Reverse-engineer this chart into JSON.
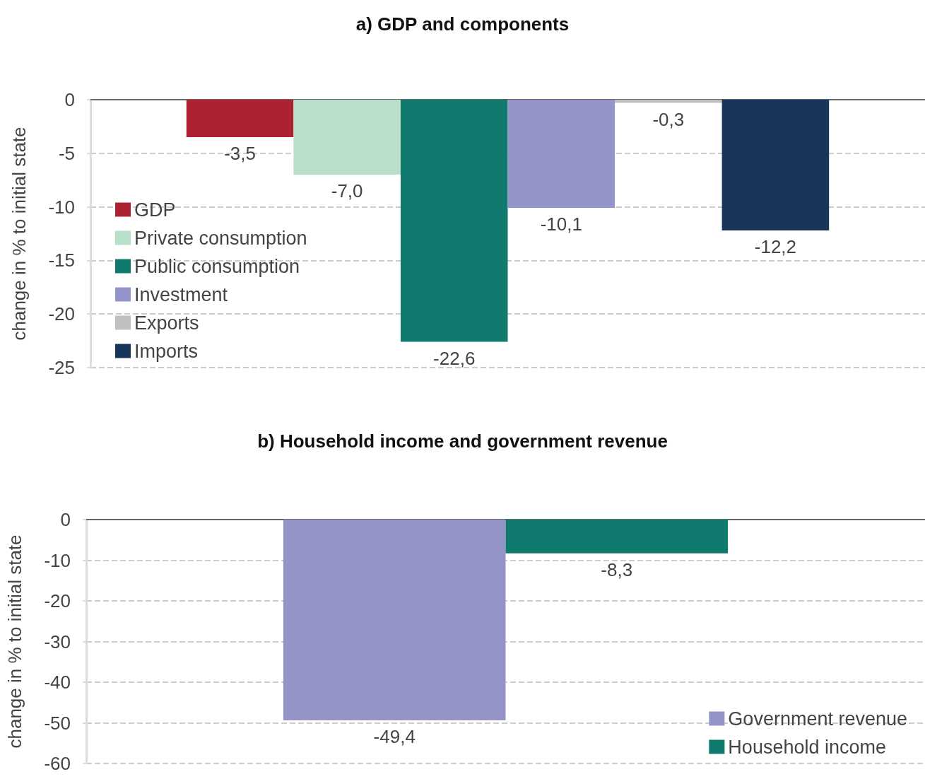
{
  "chart_data": [
    {
      "type": "bar",
      "title": "a) GDP and components",
      "ylabel": "change in % to initial state",
      "categories": [
        null
      ],
      "ylim": [
        -25,
        0
      ],
      "yticks": [
        0,
        -5,
        -10,
        -15,
        -20,
        -25
      ],
      "grid": "y",
      "legend": "bottom left",
      "tick_labels": "y",
      "series": [
        {
          "name": "GDP",
          "color": "#ae2132",
          "values": [
            -3.5
          ],
          "value_labels": [
            "-3,5"
          ]
        },
        {
          "name": "Private consumption",
          "color": "#b7dfca",
          "values": [
            -7.0
          ],
          "value_labels": [
            "-7,0"
          ]
        },
        {
          "name": "Public consumption",
          "color": "#117a6f",
          "values": [
            -22.6
          ],
          "value_labels": [
            "-22,6"
          ]
        },
        {
          "name": "Investment",
          "color": "#9494c8",
          "values": [
            -10.1
          ],
          "value_labels": [
            "-10,1"
          ]
        },
        {
          "name": "Exports",
          "color": "#c0c0c0",
          "values": [
            -0.3
          ],
          "value_labels": [
            "-0,3"
          ]
        },
        {
          "name": "Imports",
          "color": "#17365a",
          "values": [
            -12.2
          ],
          "value_labels": [
            "-12,2"
          ]
        }
      ]
    },
    {
      "type": "bar",
      "title": "b) Household income and government revenue",
      "ylabel": "change in % to initial state",
      "categories": [
        null
      ],
      "ylim": [
        -60,
        0
      ],
      "yticks": [
        0,
        -10,
        -20,
        -30,
        -40,
        -50,
        -60
      ],
      "grid": "y",
      "legend": "bottom right",
      "tick_labels": "y",
      "series": [
        {
          "name": "Government revenue",
          "color": "#9494c8",
          "values": [
            -49.4
          ],
          "value_labels": [
            "-49,4"
          ]
        },
        {
          "name": "Household income",
          "color": "#117a6f",
          "values": [
            -8.3
          ],
          "value_labels": [
            "-8,3"
          ]
        }
      ]
    }
  ]
}
